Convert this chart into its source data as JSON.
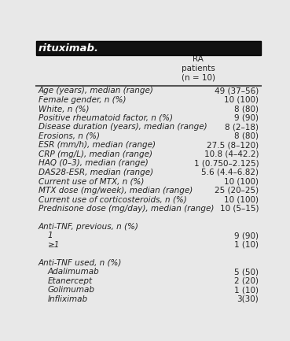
{
  "title": "rituximab.",
  "header_col": "RA\npatients\n(n = 10)",
  "rows": [
    {
      "label": "Age (years), median (range)",
      "value": "49 (37–56)",
      "indent": 0
    },
    {
      "label": "Female gender, n (%)",
      "value": "10 (100)",
      "indent": 0
    },
    {
      "label": "White, n (%)",
      "value": "8 (80)",
      "indent": 0
    },
    {
      "label": "Positive rheumatoid factor, n (%)",
      "value": "9 (90)",
      "indent": 0
    },
    {
      "label": "Disease duration (years), median (range)",
      "value": "8 (2–18)",
      "indent": 0
    },
    {
      "label": "Erosions, n (%)",
      "value": "8 (80)",
      "indent": 0
    },
    {
      "label": "ESR (mm/h), median (range)",
      "value": "27.5 (8–120)",
      "indent": 0
    },
    {
      "label": "CRP (mg/L), median (range)",
      "value": "10.8 (4–42.2)",
      "indent": 0
    },
    {
      "label": "HAQ (0–3), median (range)",
      "value": "1 (0.750–2.125)",
      "indent": 0
    },
    {
      "label": "DAS28-ESR, median (range)",
      "value": "5.6 (4.4–6.82)",
      "indent": 0
    },
    {
      "label": "Current use of MTX, n (%)",
      "value": "10 (100)",
      "indent": 0
    },
    {
      "label": "MTX dose (mg/week), median (range)",
      "value": "25 (20–25)",
      "indent": 0
    },
    {
      "label": "Current use of corticosteroids, n (%)",
      "value": "10 (100)",
      "indent": 0
    },
    {
      "label": "Prednisone dose (mg/day), median (range)",
      "value": "10 (5–15)",
      "indent": 0
    },
    {
      "label": "",
      "value": "",
      "indent": 0
    },
    {
      "label": "Anti-TNF, previous, n (%)",
      "value": "",
      "indent": 0
    },
    {
      "label": "1",
      "value": "9 (90)",
      "indent": 1
    },
    {
      "label": "≥1",
      "value": "1 (10)",
      "indent": 1
    },
    {
      "label": "",
      "value": "",
      "indent": 0
    },
    {
      "label": "Anti-TNF used, n (%)",
      "value": "",
      "indent": 0
    },
    {
      "label": "Adalimumab",
      "value": "5 (50)",
      "indent": 1
    },
    {
      "label": "Etanercept",
      "value": "2 (20)",
      "indent": 1
    },
    {
      "label": "Golimumab",
      "value": "1 (10)",
      "indent": 1
    },
    {
      "label": "Infliximab",
      "value": "3(30)",
      "indent": 1
    }
  ],
  "bg_color": "#e8e8e8",
  "title_bg": "#111111",
  "title_color": "#ffffff",
  "font_size": 7.5,
  "title_font_size": 9.5,
  "text_color": "#222222"
}
